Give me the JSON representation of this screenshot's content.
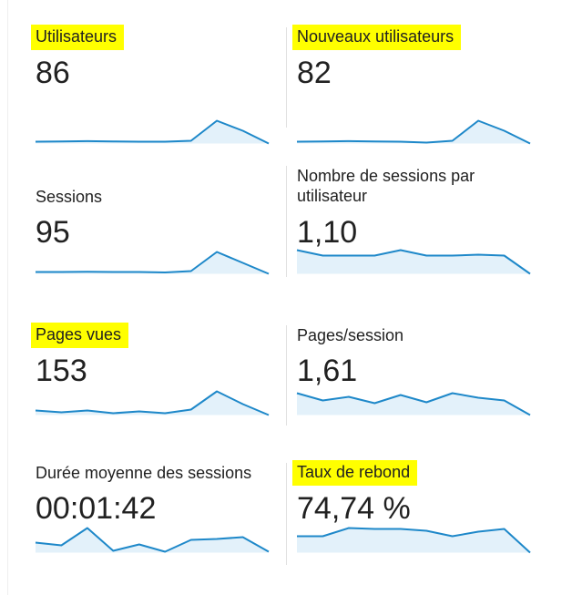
{
  "colors": {
    "highlight": "#ffff00",
    "line": "#1e88c9",
    "fill": "#e3f1fa",
    "text": "#212121"
  },
  "metrics": [
    {
      "label": "Utilisateurs",
      "value": "86",
      "highlighted": true,
      "sparkline": [
        2,
        2.3,
        2.6,
        2.3,
        2,
        2,
        3,
        25,
        14,
        0
      ]
    },
    {
      "label": "Nouveaux utilisateurs",
      "value": "82",
      "highlighted": true,
      "sparkline": [
        2,
        2.3,
        2.6,
        2.3,
        2,
        1,
        3,
        25,
        14,
        0
      ]
    },
    {
      "label": "Sessions",
      "value": "95",
      "highlighted": false,
      "sparkline": [
        2,
        2,
        2.3,
        2,
        2,
        1.5,
        3,
        24,
        12,
        0
      ]
    },
    {
      "label": "Nombre de sessions par utilisateur",
      "value": "1,10",
      "highlighted": false,
      "sparkline": [
        26,
        20,
        20,
        20,
        26,
        20,
        20,
        21,
        20,
        0
      ]
    },
    {
      "label": "Pages vues",
      "value": "153",
      "highlighted": false,
      "sparkline": [
        5,
        3,
        5,
        2,
        4,
        2,
        6,
        26,
        12,
        0
      ]
    },
    {
      "label": "Pages/session",
      "value": "1,61",
      "highlighted": false,
      "sparkline": [
        24,
        16,
        20,
        13,
        22,
        14,
        24,
        19,
        16,
        0
      ]
    },
    {
      "label": "Durée moyenne des sessions",
      "value": "00:01:42",
      "highlighted": false,
      "sparkline": [
        11,
        8,
        27,
        2,
        9,
        1,
        14,
        15,
        17,
        1
      ]
    },
    {
      "label": "Taux de rebond",
      "value": "74,74 %",
      "highlighted": true,
      "sparkline": [
        18,
        18,
        27,
        26,
        26,
        24,
        18,
        23,
        26,
        0
      ]
    }
  ]
}
